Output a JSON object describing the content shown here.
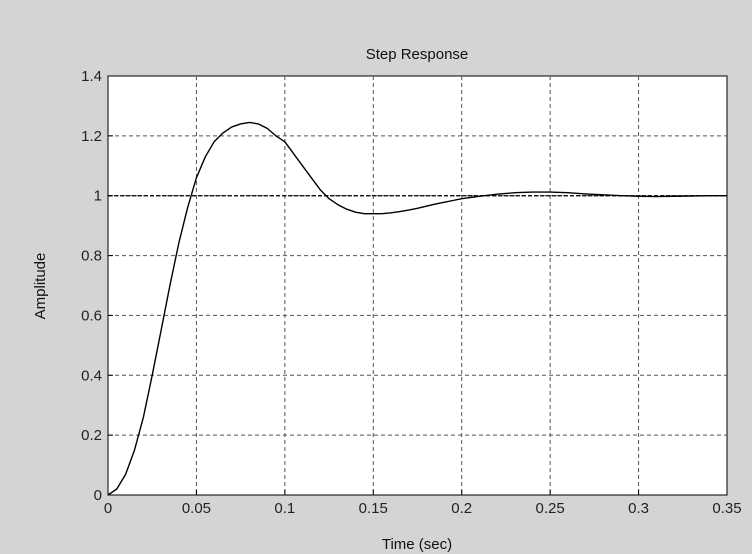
{
  "chart_data": {
    "type": "line",
    "title": "Step Response",
    "xlabel": "Time (sec)",
    "ylabel": "Amplitude",
    "xlim": [
      0,
      0.35
    ],
    "ylim": [
      0,
      1.4
    ],
    "grid": true,
    "x_ticks": [
      "0",
      "0.05",
      "0.1",
      "0.15",
      "0.2",
      "0.25",
      "0.3",
      "0.35"
    ],
    "y_ticks": [
      "0",
      "0.2",
      "0.4",
      "0.6",
      "0.8",
      "1",
      "1.2",
      "1.4"
    ],
    "reference_line": {
      "y": 1.0,
      "style": "dashed"
    },
    "series": [
      {
        "x": [
          0,
          0.005,
          0.01,
          0.015,
          0.02,
          0.025,
          0.03,
          0.035,
          0.04,
          0.045,
          0.05,
          0.055,
          0.06,
          0.065,
          0.07,
          0.075,
          0.08,
          0.085,
          0.09,
          0.095,
          0.1,
          0.105,
          0.11,
          0.115,
          0.12,
          0.125,
          0.13,
          0.135,
          0.14,
          0.145,
          0.15,
          0.155,
          0.16,
          0.165,
          0.17,
          0.175,
          0.18,
          0.185,
          0.19,
          0.195,
          0.2,
          0.21,
          0.22,
          0.23,
          0.24,
          0.25,
          0.26,
          0.27,
          0.28,
          0.29,
          0.3,
          0.31,
          0.32,
          0.33,
          0.34,
          0.35
        ],
        "values": [
          0,
          0.02,
          0.07,
          0.15,
          0.26,
          0.4,
          0.55,
          0.7,
          0.84,
          0.96,
          1.06,
          1.13,
          1.18,
          1.21,
          1.23,
          1.24,
          1.245,
          1.24,
          1.225,
          1.2,
          1.18,
          1.14,
          1.1,
          1.06,
          1.02,
          0.99,
          0.97,
          0.955,
          0.945,
          0.94,
          0.94,
          0.94,
          0.943,
          0.947,
          0.952,
          0.958,
          0.965,
          0.972,
          0.978,
          0.984,
          0.99,
          0.998,
          1.005,
          1.01,
          1.012,
          1.012,
          1.01,
          1.006,
          1.003,
          1.0,
          0.998,
          0.997,
          0.998,
          0.999,
          1.0,
          1.0
        ]
      }
    ]
  }
}
